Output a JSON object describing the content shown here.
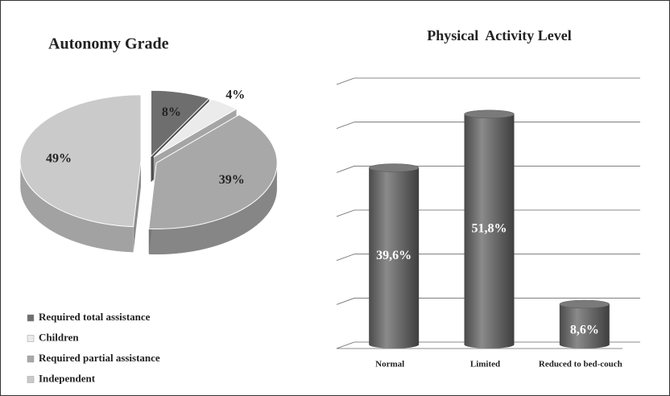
{
  "chart_data": [
    {
      "type": "pie",
      "title": "Autonomy Grade",
      "categories": [
        "Required total assistance",
        "Children",
        "Required partial assistance",
        "Independent"
      ],
      "values": [
        8,
        4,
        39,
        49
      ],
      "value_labels": [
        "8%",
        "4%",
        "39%",
        "49%"
      ],
      "colors": [
        "#6e6e6e",
        "#ebebeb",
        "#a8a8a8",
        "#cacaca"
      ],
      "legend": "bottom-left"
    },
    {
      "type": "bar",
      "title": "Physical  Activity Level",
      "categories": [
        "Normal",
        "Limited",
        "Reduced to bed-couch"
      ],
      "values": [
        39.6,
        51.8,
        8.6
      ],
      "value_labels": [
        "39,6%",
        "51,8%",
        "8,6%"
      ],
      "color": "#6a6a6a",
      "ylim": [
        0,
        60
      ],
      "yticks": [
        0,
        10,
        20,
        30,
        40,
        50,
        60
      ],
      "grid": true
    }
  ]
}
